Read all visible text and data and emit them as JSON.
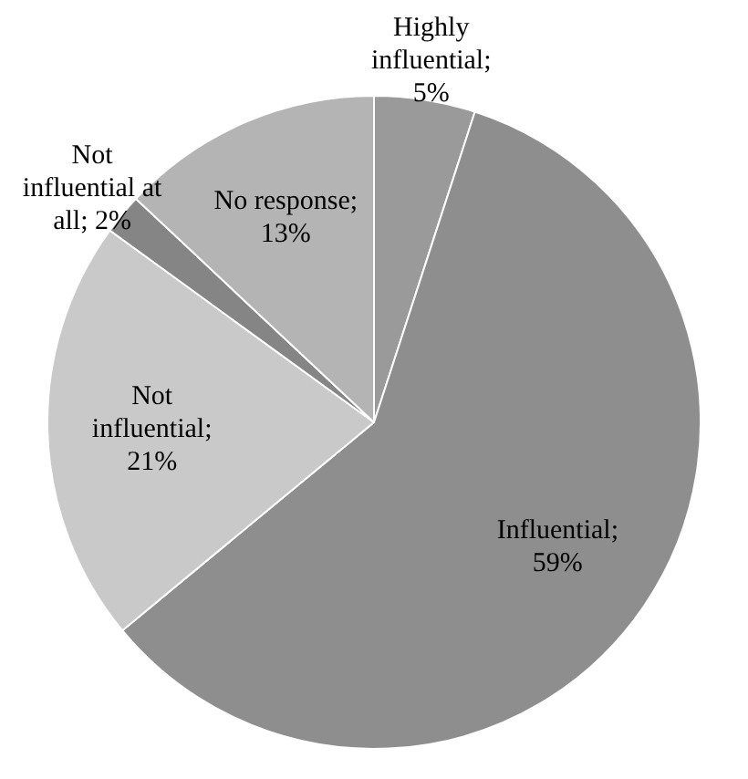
{
  "chart_data": {
    "type": "pie",
    "categories": [
      "Highly influential",
      "Influential",
      "Not influential",
      "Not influential at all",
      "No response"
    ],
    "values": [
      5,
      59,
      21,
      2,
      13
    ],
    "colors": [
      "#9a9a9a",
      "#8e8e8e",
      "#c9c9c9",
      "#858585",
      "#b4b4b4"
    ],
    "value_labels": [
      "; 5%",
      "; 59%",
      "; 21%",
      "; 2%",
      "; 13%"
    ],
    "legend": false
  }
}
